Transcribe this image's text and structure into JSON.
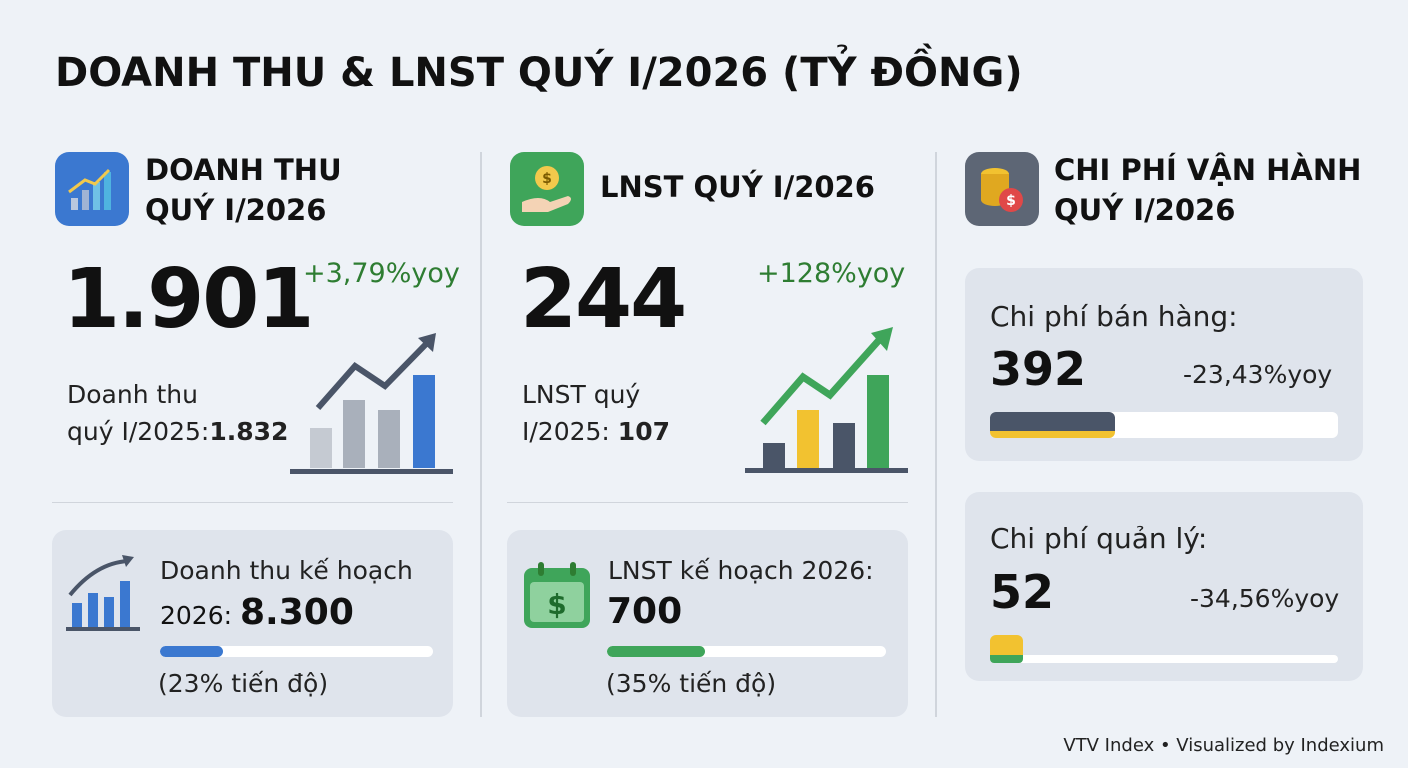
{
  "title": "DOANH THU & LNST QUÝ I/2026 (TỶ ĐỒNG)",
  "revenue": {
    "heading_lines": [
      "DOANH THU",
      "QUÝ I/2026"
    ],
    "value": "1.901",
    "change": "+3,79%yoy",
    "prior_label_lines": [
      "Doanh thu",
      "quý I/2025:"
    ],
    "prior_value": "1.832",
    "plan_label": "Doanh thu kế hoạch",
    "plan_year": "2026:",
    "plan_value": "8.300",
    "progress": 23,
    "progress_label": "(23% tiến độ)"
  },
  "profit": {
    "heading": "LNST QUÝ I/2026",
    "value": "244",
    "change": "+128%yoy",
    "prior_label_lines": [
      "LNST quý",
      "I/2025:"
    ],
    "prior_value": "107",
    "plan_label": "LNST kế hoạch 2026:",
    "plan_value": "700",
    "progress": 35,
    "progress_label": "(35% tiến độ)"
  },
  "costs": {
    "heading_lines": [
      "CHI PHÍ VẬN HÀNH",
      "QUÝ I/2026"
    ],
    "items": [
      {
        "label": "Chi phí bán hàng:",
        "value": "392",
        "change": "-23,43%yoy"
      },
      {
        "label": "Chi phí quản lý:",
        "value": "52",
        "change": "-34,56%yoy"
      }
    ]
  },
  "footer": "VTV Index • Visualized by Indexium"
}
